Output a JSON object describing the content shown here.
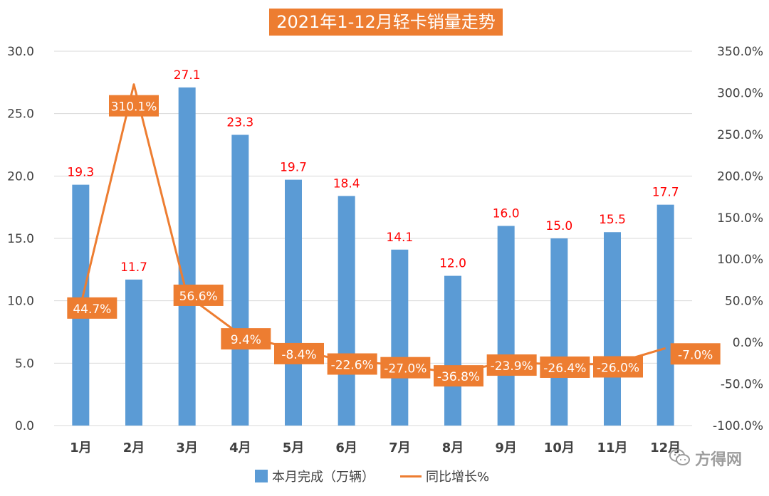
{
  "chart_data": {
    "type": "bar",
    "title": "2021年1-12月轻卡销量走势",
    "categories": [
      "1月",
      "2月",
      "3月",
      "4月",
      "5月",
      "6月",
      "7月",
      "8月",
      "9月",
      "10月",
      "11月",
      "12月"
    ],
    "series": [
      {
        "name": "本月完成（万辆）",
        "type": "bar",
        "axis": "left",
        "values": [
          19.3,
          11.7,
          27.1,
          23.3,
          19.7,
          18.4,
          14.1,
          12.0,
          16.0,
          15.0,
          15.5,
          17.7
        ],
        "labels": [
          "19.3",
          "11.7",
          "27.1",
          "23.3",
          "19.7",
          "18.4",
          "14.1",
          "12.0",
          "16.0",
          "15.0",
          "15.5",
          "17.7"
        ]
      },
      {
        "name": "同比增长%",
        "type": "line",
        "axis": "right",
        "values": [
          44.7,
          310.1,
          56.6,
          9.4,
          -8.4,
          -22.6,
          -27.0,
          -36.8,
          -23.9,
          -26.4,
          -26.0,
          -7.0
        ],
        "labels": [
          "44.7%",
          "310.1%",
          "56.6%",
          "9.4%",
          "-8.4%",
          "-22.6%",
          "-27.0%",
          "-36.8%",
          "-23.9%",
          "-26.4%",
          "-26.0%",
          "-7.0%"
        ]
      }
    ],
    "y_left": {
      "min": 0,
      "max": 30,
      "ticks": [
        "0.0",
        "5.0",
        "10.0",
        "15.0",
        "20.0",
        "25.0",
        "30.0"
      ]
    },
    "y_right": {
      "min": -100,
      "max": 350,
      "ticks": [
        "-100.0%",
        "-50.0%",
        "0.0%",
        "50.0%",
        "100.0%",
        "150.0%",
        "200.0%",
        "250.0%",
        "300.0%",
        "350.0%"
      ]
    },
    "grid": true,
    "legend_position": "bottom",
    "colors": {
      "bar": "#5b9bd5",
      "line": "#ed7d31",
      "bar_label": "#ff0000",
      "line_label_bg": "#ed7d31",
      "line_label_text": "#ffffff",
      "title_bg": "#ed7d31",
      "title_text": "#ffffff"
    }
  },
  "watermark": {
    "text": "方得网",
    "icon": "wechat-icon"
  }
}
